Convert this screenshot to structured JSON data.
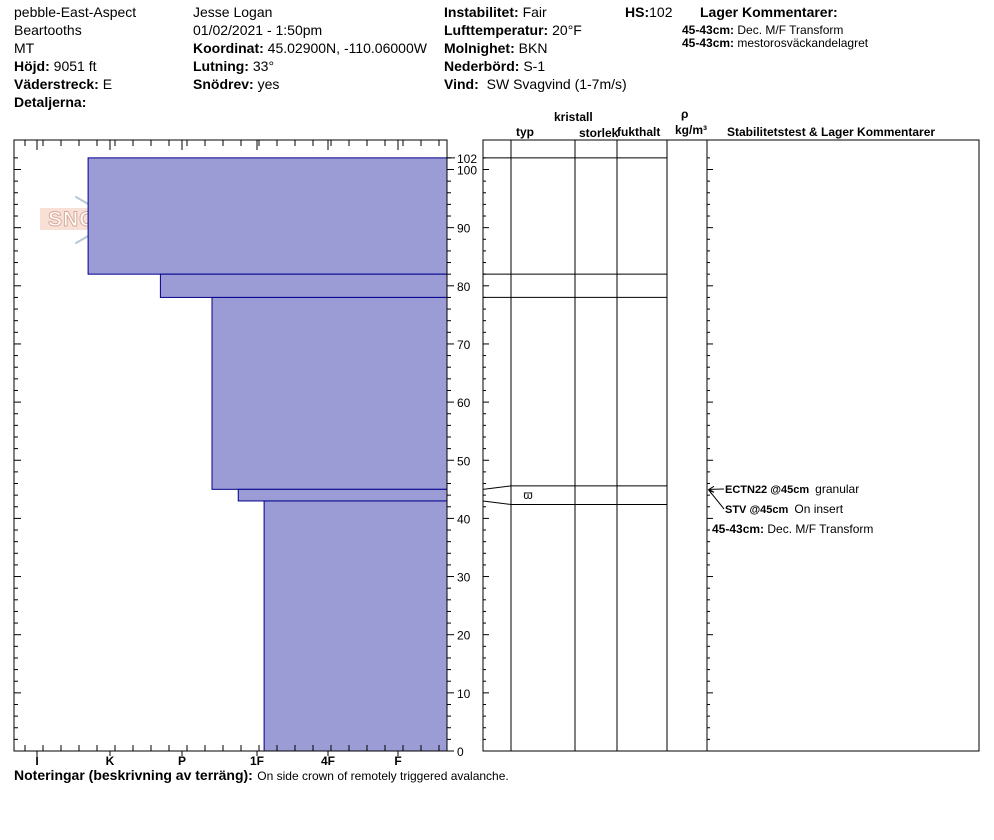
{
  "header": {
    "location": "pebble-East-Aspect",
    "range": "Beartooths",
    "state": "MT",
    "elevation_label": "Höjd:",
    "elevation_value": "9051 ft",
    "aspect_label": "Väderstreck:",
    "aspect_value": "E",
    "details_label": "Detaljerna:",
    "observer": "Jesse Logan",
    "datetime": "01/02/2021 - 1:50pm",
    "coord_label": "Koordinat:",
    "coord_value": "45.02900N, -110.06000W",
    "slope_label": "Lutning:",
    "slope_value": "33°",
    "drift_label": "Snödrev:",
    "drift_value": "yes",
    "instability_label": "Instabilitet:",
    "instability_value": "Fair",
    "airtemp_label": "Lufttemperatur:",
    "airtemp_value": "20°F",
    "cloud_label": "Molnighet:",
    "cloud_value": "BKN",
    "precip_label": "Nederbörd:",
    "precip_value": "S-1",
    "wind_label": "Vind:",
    "wind_value": "SW Svagvind (1-7m/s)",
    "hs_label": "HS:",
    "hs_value": "102",
    "layer_comments_label": "Lager Kommentarer:",
    "layer_comments": [
      {
        "range": "45-43cm:",
        "text": "Dec. M/F Transform"
      },
      {
        "range": "45-43cm:",
        "text": "mestorosväckandelagret"
      }
    ]
  },
  "logo": {
    "text": "SNOW PILOT"
  },
  "columns": {
    "crystal": "kristall",
    "type": "typ",
    "size": "storlek",
    "moisture": "fukthalt",
    "rho": "ρ",
    "density_unit": "kg/m³",
    "stability": "Stabilitetstest & Lager Kommentarer"
  },
  "chart_data": {
    "type": "bar",
    "hardness_categories": [
      "I",
      "K",
      "P",
      "1F",
      "4F",
      "F"
    ],
    "y_ticks": [
      0,
      10,
      20,
      30,
      40,
      50,
      60,
      70,
      80,
      90,
      100
    ],
    "ylim": [
      0,
      102
    ],
    "total_depth": 102,
    "layers": [
      {
        "bottom": 82,
        "top": 102,
        "hardness": 0.7
      },
      {
        "bottom": 78,
        "top": 82,
        "hardness": 1.7
      },
      {
        "bottom": 45,
        "top": 78,
        "hardness": 2.4
      },
      {
        "bottom": 43,
        "top": 45,
        "hardness": 2.75
      },
      {
        "bottom": 0,
        "top": 43,
        "hardness": 3.1
      }
    ],
    "layer_boundaries": [
      102,
      82,
      78,
      45.6,
      42.4
    ],
    "grain_symbol": {
      "depth": 44,
      "glyph": "ϖ"
    },
    "colors": {
      "fill": "#9b9bd6",
      "stroke": "#00008b"
    }
  },
  "tests": [
    {
      "label": "ECTN22 @45cm",
      "result": "granular"
    },
    {
      "label": "STV @45cm",
      "result": "On insert"
    }
  ],
  "test_layer_comment": {
    "range": "45-43cm:",
    "text": "Dec. M/F Transform"
  },
  "notes": {
    "label": "Noteringar (beskrivning av terräng):",
    "text": "On side crown of remotely triggered avalanche."
  }
}
